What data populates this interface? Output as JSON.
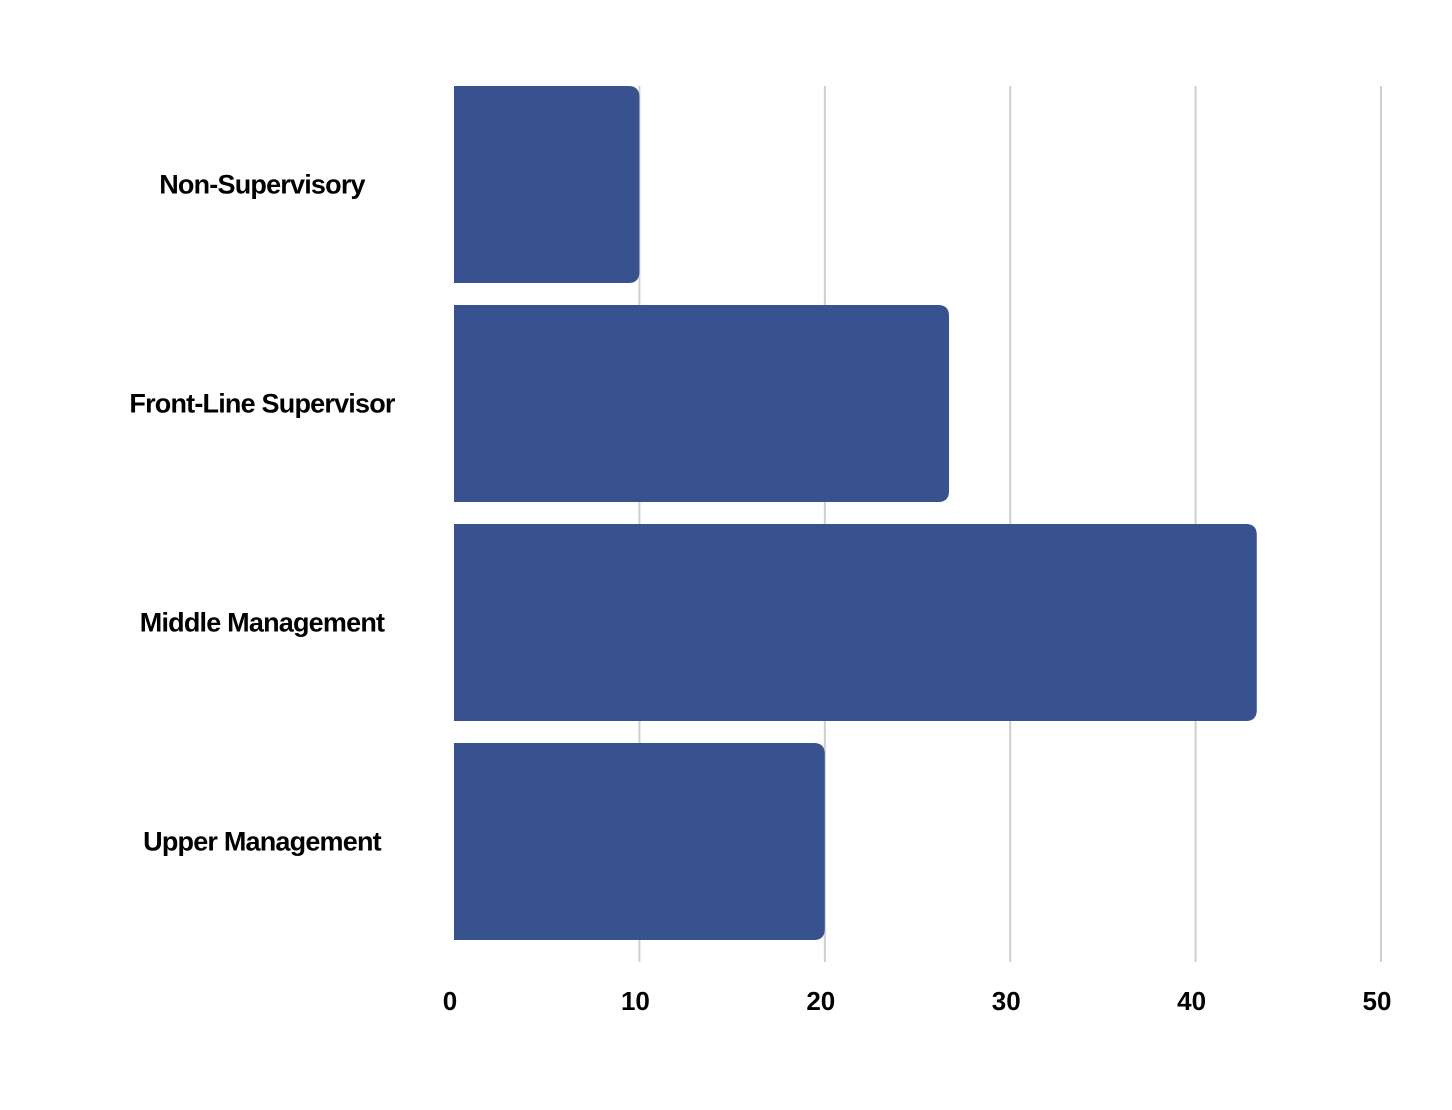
{
  "chart_data": {
    "type": "bar",
    "orientation": "horizontal",
    "categories": [
      "Non-Supervisory",
      "Front-Line Supervisor",
      "Middle Management",
      "Upper Management"
    ],
    "values": [
      10,
      26.7,
      43.3,
      20
    ],
    "xlim": [
      0,
      50
    ],
    "xticks": [
      "0",
      "10",
      "20",
      "30",
      "40",
      "50"
    ],
    "grid": true,
    "bar_color": "#38528f",
    "title": "",
    "xlabel": "",
    "ylabel": ""
  }
}
